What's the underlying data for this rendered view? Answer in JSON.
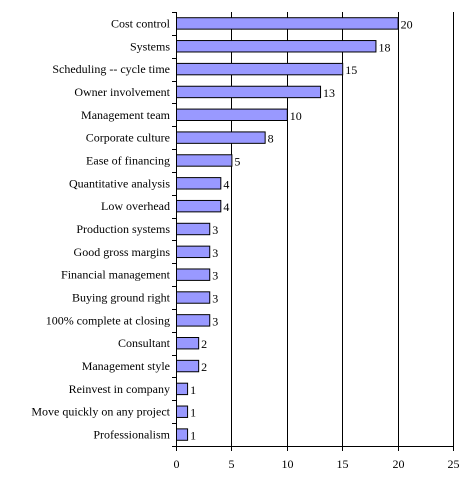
{
  "chart_data": {
    "type": "bar",
    "orientation": "horizontal",
    "title": "",
    "xlabel": "",
    "ylabel": "",
    "xlim": [
      0,
      25
    ],
    "x_ticks": [
      0,
      5,
      10,
      15,
      20,
      25
    ],
    "grid": true,
    "legend": "none",
    "bar_color": "#9999ff",
    "categories": [
      "Cost control",
      "Systems",
      "Scheduling -- cycle time",
      "Owner involvement",
      "Management team",
      "Corporate culture",
      "Ease of financing",
      "Quantitative analysis",
      "Low overhead",
      "Production systems",
      "Good gross margins",
      "Financial management",
      "Buying ground right",
      "100% complete at closing",
      "Consultant",
      "Management style",
      "Reinvest in company",
      "Move quickly on any project",
      "Professionalism"
    ],
    "values": [
      20,
      18,
      15,
      13,
      10,
      8,
      5,
      4,
      4,
      3,
      3,
      3,
      3,
      3,
      2,
      2,
      1,
      1,
      1
    ]
  }
}
